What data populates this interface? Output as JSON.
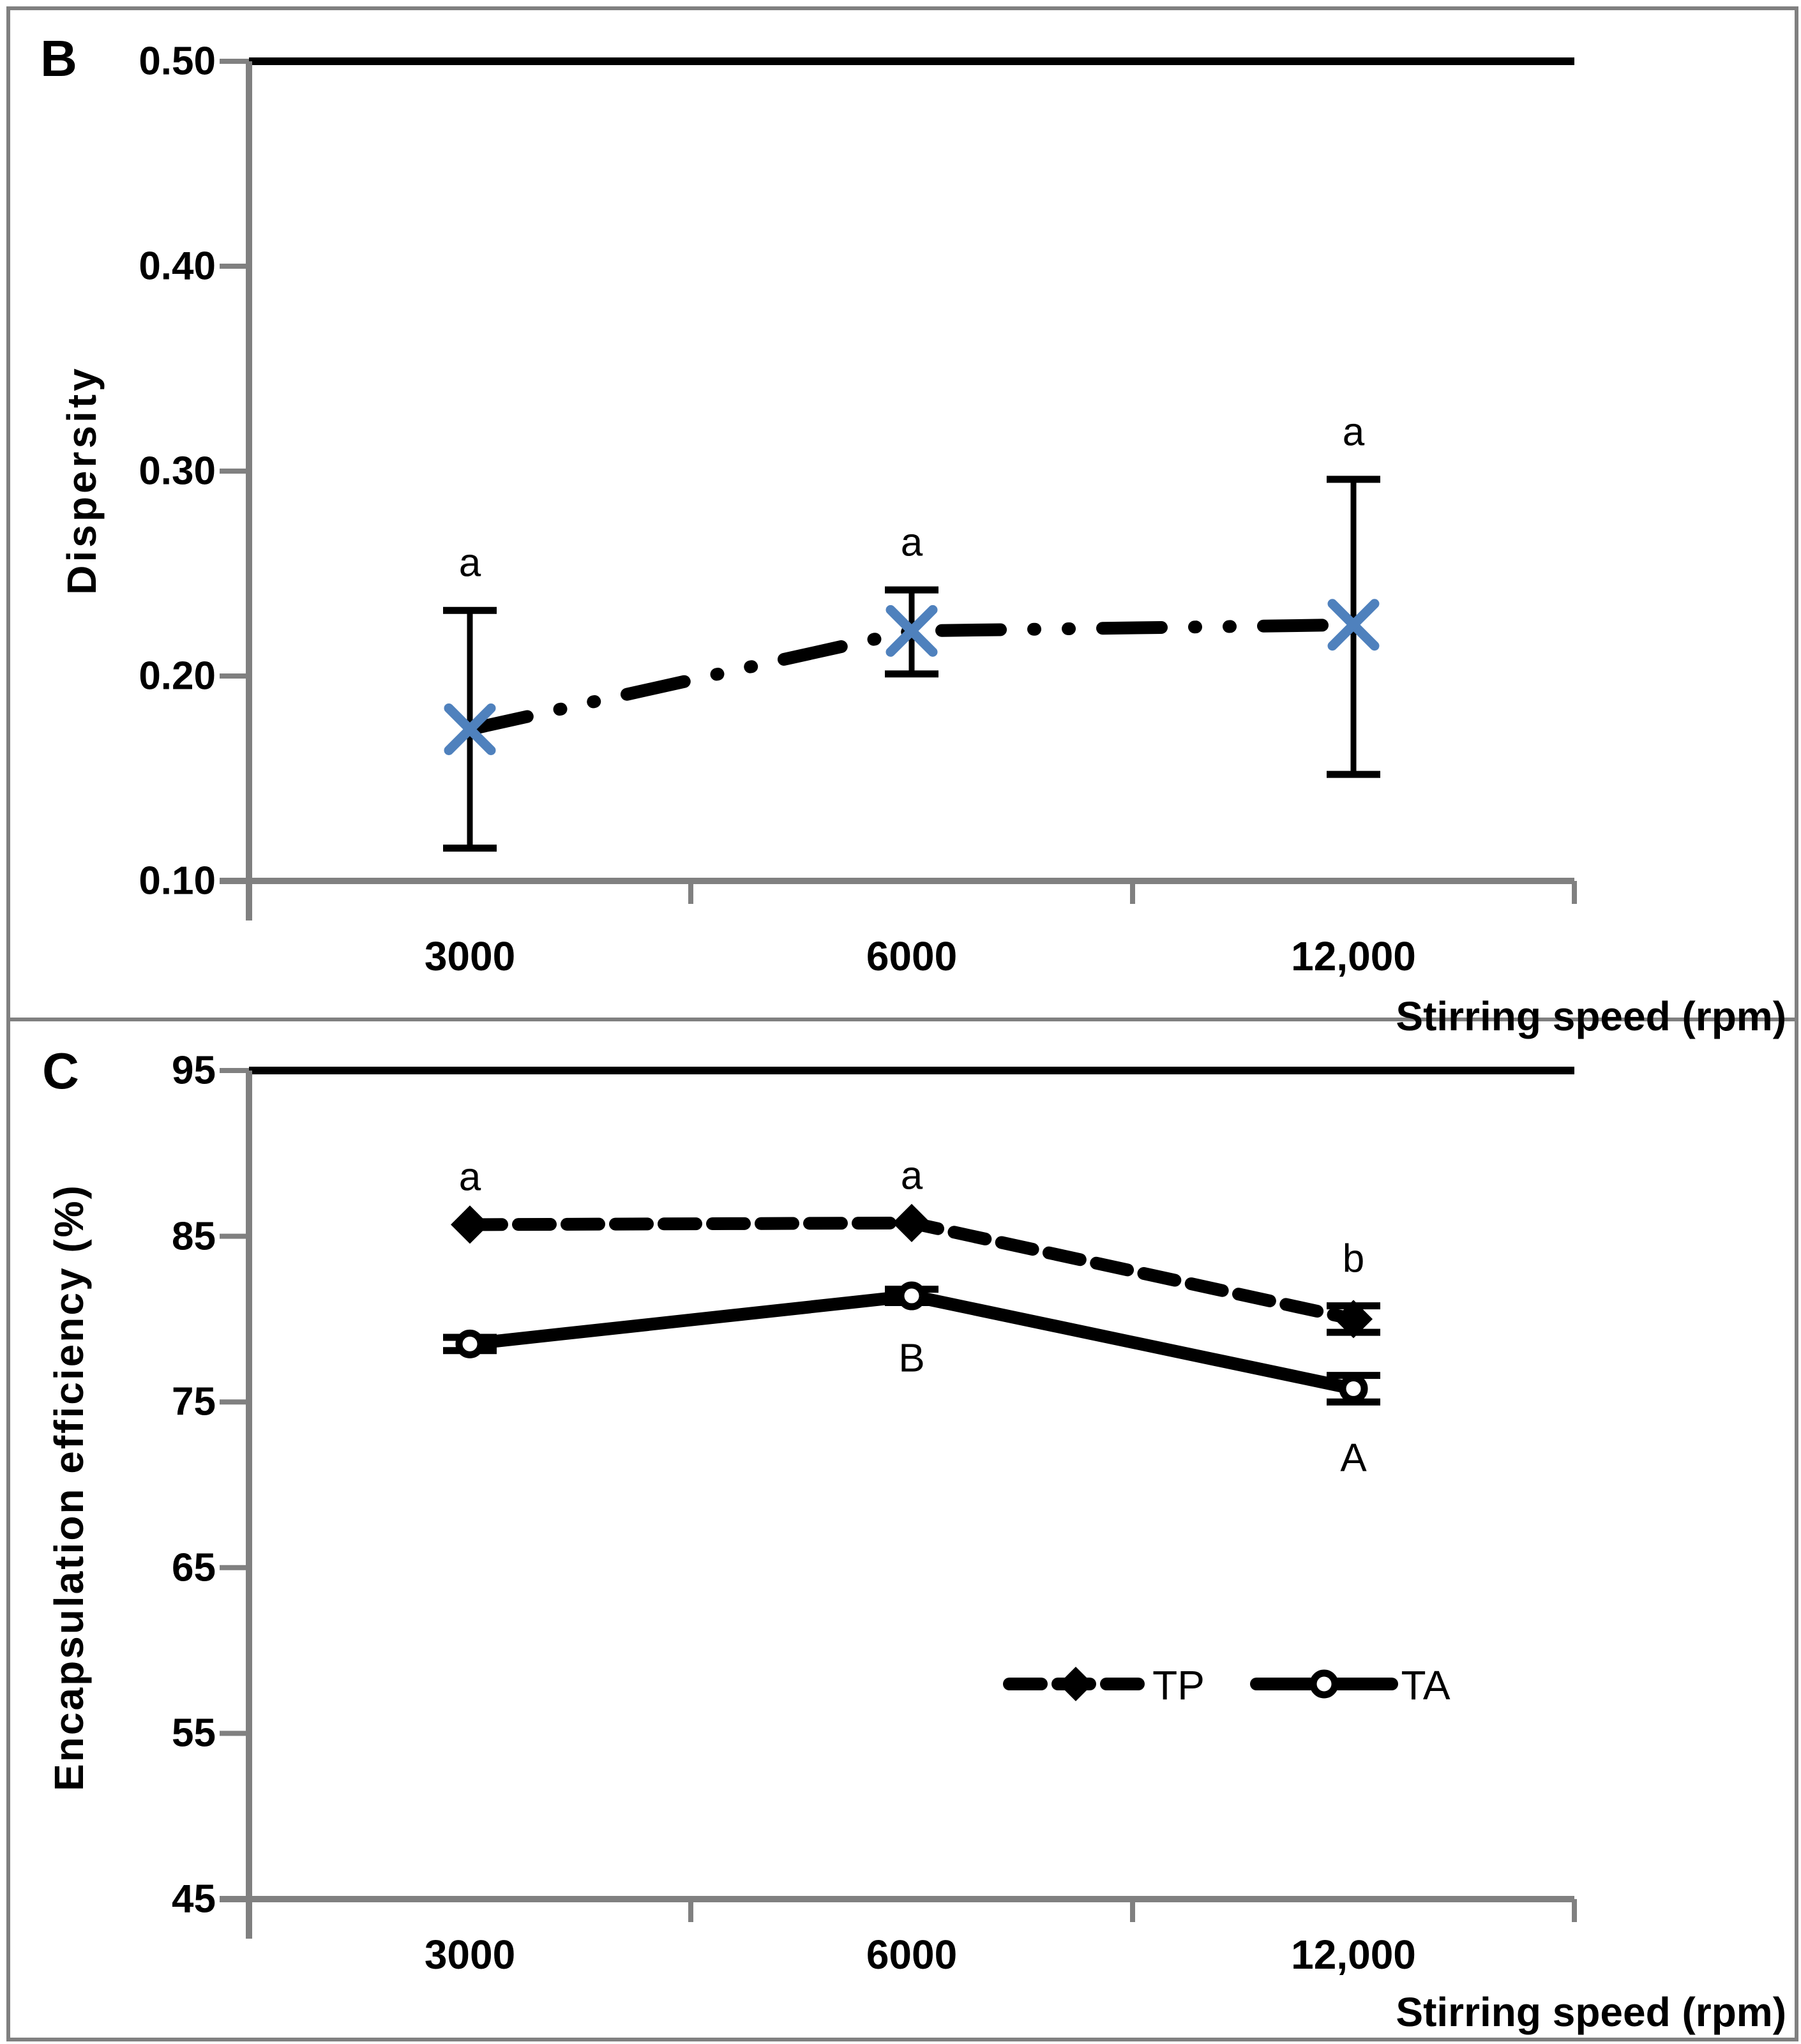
{
  "figure": {
    "panel_b_letter": "B",
    "panel_c_letter": "C"
  },
  "colors": {
    "axis_gray": "#808080",
    "border_gray": "#808080",
    "line_black": "#000000",
    "marker_blue": "#4f81bd",
    "background": "#ffffff"
  },
  "chart_data": [
    {
      "id": "B",
      "type": "line",
      "title": "",
      "xlabel": "Stirring speed (rpm)",
      "ylabel": "Dispersity",
      "categories": [
        "3000",
        "6000",
        "12,000"
      ],
      "ylim": [
        0.1,
        0.5
      ],
      "yticks": [
        "0.10",
        "0.20",
        "0.30",
        "0.40",
        "0.50"
      ],
      "grid": false,
      "legend": null,
      "series": [
        {
          "name": "Dispersity",
          "values": [
            0.174,
            0.222,
            0.225
          ],
          "err_low": [
            0.116,
            0.201,
            0.152
          ],
          "err_high": [
            0.232,
            0.242,
            0.296
          ],
          "point_labels": [
            "a",
            "a",
            "a"
          ],
          "label_side": "above",
          "line_style": "dash-dot-dot",
          "marker": "x-blue"
        }
      ]
    },
    {
      "id": "C",
      "type": "line",
      "title": "",
      "xlabel": "Stirring speed (rpm)",
      "ylabel": "Encapsulation efficiency (%)",
      "categories": [
        "3000",
        "6000",
        "12,000"
      ],
      "ylim": [
        45,
        95
      ],
      "yticks": [
        "45",
        "55",
        "65",
        "75",
        "85",
        "95"
      ],
      "grid": false,
      "legend": {
        "position": "inside-lower-right",
        "items": [
          {
            "label": "TP",
            "line": "dashed",
            "marker": "diamond-filled"
          },
          {
            "label": "TA",
            "line": "solid",
            "marker": "circle-open"
          }
        ]
      },
      "series": [
        {
          "name": "TP",
          "values": [
            85.7,
            85.8,
            80.0
          ],
          "err_low": [
            null,
            null,
            79.2
          ],
          "err_high": [
            null,
            null,
            80.8
          ],
          "point_labels": [
            "a",
            "a",
            "b"
          ],
          "label_side": "above",
          "line_style": "dashed",
          "marker": "diamond-filled"
        },
        {
          "name": "TA",
          "values": [
            78.5,
            81.4,
            75.8
          ],
          "err_low": [
            78.1,
            81.0,
            75.0
          ],
          "err_high": [
            78.9,
            81.8,
            76.6
          ],
          "point_labels": [
            null,
            "B",
            "A"
          ],
          "label_side": "below",
          "line_style": "solid",
          "marker": "circle-open"
        }
      ]
    }
  ]
}
